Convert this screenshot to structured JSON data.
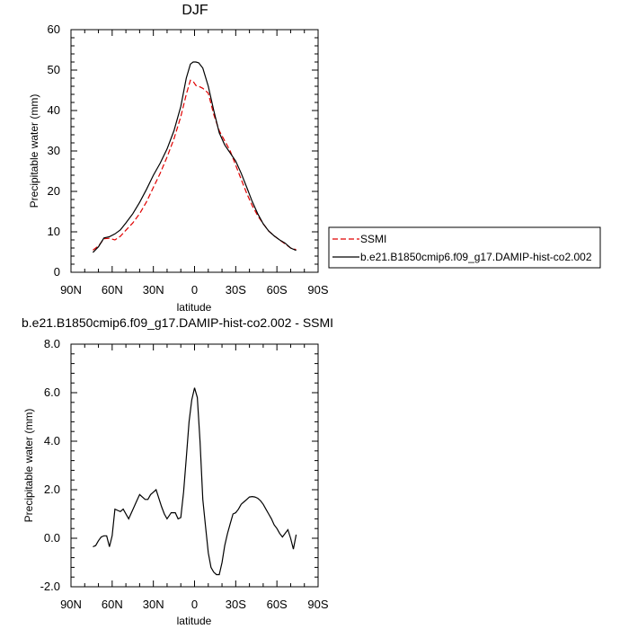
{
  "chart_data": [
    {
      "type": "line",
      "title": "DJF",
      "xlabel": "latitude",
      "ylabel": "Precipitable water (mm)",
      "xlim": [
        90,
        -90
      ],
      "ylim": [
        0,
        60
      ],
      "x_ticks": [
        {
          "value": 90,
          "label": "90N"
        },
        {
          "value": 60,
          "label": "60N"
        },
        {
          "value": 30,
          "label": "30N"
        },
        {
          "value": 0,
          "label": "0"
        },
        {
          "value": -30,
          "label": "30S"
        },
        {
          "value": -60,
          "label": "60S"
        },
        {
          "value": -90,
          "label": "90S"
        }
      ],
      "y_ticks": [
        "0",
        "10",
        "20",
        "30",
        "40",
        "50",
        "60"
      ],
      "legend": "right",
      "series": [
        {
          "name": "SSMI",
          "color": "#e00000",
          "dash": true,
          "x": [
            74,
            70,
            66,
            62,
            58,
            54,
            50,
            45,
            40,
            35,
            30,
            25,
            20,
            15,
            10,
            6,
            3,
            1,
            -1,
            -3,
            -6,
            -10,
            -14,
            -18,
            -22,
            -26,
            -30,
            -34,
            -38,
            -42,
            -46,
            -50,
            -54,
            -58,
            -62,
            -66,
            -70,
            -74
          ],
          "values": [
            5.5,
            6.5,
            8.3,
            8.4,
            8.0,
            8.9,
            10.4,
            12.2,
            14.5,
            17.4,
            21.0,
            24.5,
            28.5,
            33.0,
            38.5,
            44.0,
            47.5,
            47.2,
            46.2,
            46.0,
            45.5,
            44.3,
            39.0,
            35.0,
            32.5,
            30.0,
            26.5,
            23.0,
            19.5,
            16.5,
            14.0,
            12.0,
            10.2,
            9.0,
            8.0,
            7.0,
            6.0,
            5.6
          ]
        },
        {
          "name": "b.e21.B1850cmip6.f09_g17.DAMIP-hist-co2.002",
          "color": "#000000",
          "dash": false,
          "x": [
            74,
            70,
            66,
            62,
            58,
            54,
            50,
            45,
            40,
            35,
            30,
            25,
            20,
            15,
            10,
            6,
            3,
            1,
            -1,
            -3,
            -6,
            -10,
            -14,
            -18,
            -22,
            -26,
            -30,
            -34,
            -38,
            -42,
            -46,
            -50,
            -54,
            -58,
            -62,
            -66,
            -70,
            -74
          ],
          "values": [
            4.9,
            6.3,
            8.5,
            8.8,
            9.5,
            10.5,
            12.2,
            14.5,
            17.3,
            20.5,
            24.0,
            27.0,
            30.5,
            35.0,
            41.0,
            48.0,
            51.5,
            52.0,
            52.0,
            51.8,
            50.5,
            46.0,
            40.0,
            34.5,
            31.5,
            29.5,
            27.5,
            24.5,
            21.0,
            17.5,
            14.5,
            12.0,
            10.2,
            9.0,
            8.0,
            7.2,
            6.0,
            5.4
          ]
        }
      ]
    },
    {
      "type": "line",
      "title": "b.e21.B1850cmip6.f09_g17.DAMIP-hist-co2.002 - SSMI",
      "xlabel": "latitude",
      "ylabel": "Precipitable water (mm)",
      "xlim": [
        90,
        -90
      ],
      "ylim": [
        -2,
        8
      ],
      "x_ticks": [
        {
          "value": 90,
          "label": "90N"
        },
        {
          "value": 60,
          "label": "60N"
        },
        {
          "value": 30,
          "label": "30N"
        },
        {
          "value": 0,
          "label": "0"
        },
        {
          "value": -30,
          "label": "30S"
        },
        {
          "value": -60,
          "label": "60S"
        },
        {
          "value": -90,
          "label": "90S"
        }
      ],
      "y_ticks": [
        "-2.0",
        "0.0",
        "2.0",
        "4.0",
        "6.0",
        "8.0"
      ],
      "series": [
        {
          "color": "#000000",
          "x": [
            74,
            72,
            70,
            68,
            66,
            64,
            62,
            60,
            58,
            56,
            54,
            52,
            48,
            44,
            42,
            40,
            38,
            36,
            34,
            32,
            30,
            28,
            24,
            22,
            20,
            17,
            14,
            12,
            10,
            8,
            6,
            4,
            2,
            0,
            -2,
            -4,
            -6,
            -8,
            -10,
            -12,
            -14,
            -16,
            -18,
            -20,
            -22,
            -24,
            -26,
            -28,
            -30,
            -32,
            -34,
            -36,
            -38,
            -40,
            -42,
            -44,
            -46,
            -48,
            -50,
            -52,
            -54,
            -56,
            -58,
            -60,
            -62,
            -64,
            -66,
            -68,
            -70,
            -72,
            -74
          ],
          "values": [
            -0.35,
            -0.3,
            -0.1,
            0.05,
            0.1,
            0.1,
            -0.35,
            0.1,
            1.2,
            1.15,
            1.1,
            1.2,
            0.8,
            1.3,
            1.55,
            1.8,
            1.7,
            1.6,
            1.6,
            1.8,
            1.9,
            2.0,
            1.3,
            1.0,
            0.8,
            1.05,
            1.05,
            0.8,
            0.85,
            1.9,
            3.3,
            4.8,
            5.7,
            6.2,
            5.8,
            4.0,
            1.6,
            0.5,
            -0.6,
            -1.2,
            -1.4,
            -1.5,
            -1.5,
            -1.0,
            -0.3,
            0.2,
            0.6,
            1.0,
            1.05,
            1.2,
            1.4,
            1.5,
            1.6,
            1.7,
            1.72,
            1.7,
            1.65,
            1.55,
            1.4,
            1.2,
            1.0,
            0.8,
            0.55,
            0.4,
            0.2,
            0.05,
            0.2,
            0.35,
            0.0,
            -0.45,
            0.15
          ]
        }
      ]
    }
  ]
}
